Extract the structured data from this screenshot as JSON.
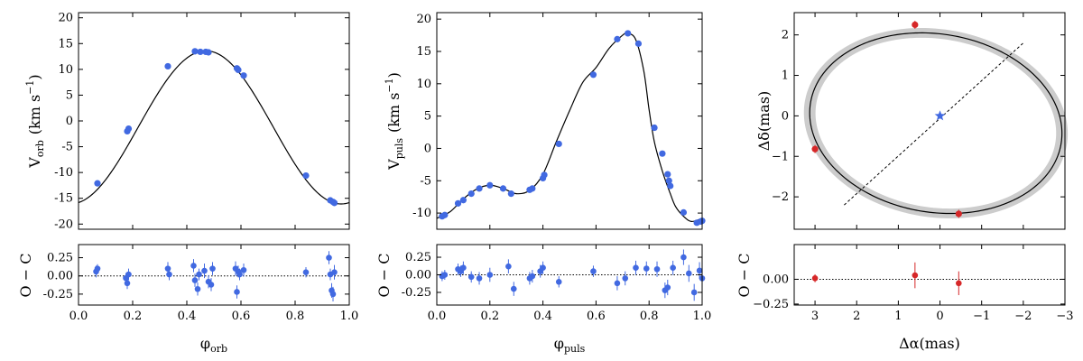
{
  "colors": {
    "rv": "#4169e1",
    "astro": "#d62728",
    "model": "#000000",
    "band": "#cccccc"
  },
  "chart_data": [
    {
      "id": "orb",
      "type": "line",
      "title": "",
      "xlim": [
        0.0,
        1.0
      ],
      "ylim": [
        -21,
        21
      ],
      "xticks": [
        "0.0",
        "0.2",
        "0.4",
        "0.6",
        "0.8",
        "1.0"
      ],
      "yticks": [
        "-20",
        "-15",
        "-10",
        "-5",
        "0",
        "5",
        "10",
        "15",
        "20"
      ],
      "ylabel": "V",
      "ylabel_sub": "orb",
      "ylabel_unit": "(km s",
      "ylabel_exp": "−1",
      "xlabel": "φ",
      "xlabel_sub": "orb",
      "model": {
        "kind": "sine",
        "amp": 14.85,
        "offset": -1.25,
        "peak": 0.47
      },
      "points": {
        "x": [
          0.07,
          0.18,
          0.185,
          0.33,
          0.43,
          0.45,
          0.47,
          0.48,
          0.585,
          0.59,
          0.61,
          0.84,
          0.93,
          0.94,
          0.945
        ],
        "y": [
          -12.1,
          -2.0,
          -1.5,
          10.6,
          13.5,
          13.4,
          13.4,
          13.3,
          10.2,
          9.9,
          8.8,
          -10.6,
          -15.4,
          -15.7,
          -15.9
        ]
      },
      "residuals": {
        "ylim": [
          -0.4,
          0.43
        ],
        "yticks": [
          "-0.25",
          "0.00",
          "0.25"
        ],
        "ylabel": "O − C",
        "x": [
          0.065,
          0.07,
          0.175,
          0.18,
          0.185,
          0.33,
          0.335,
          0.425,
          0.43,
          0.44,
          0.445,
          0.465,
          0.48,
          0.49,
          0.495,
          0.58,
          0.585,
          0.59,
          0.595,
          0.61,
          0.84,
          0.925,
          0.93,
          0.935,
          0.94,
          0.945
        ],
        "y": [
          0.06,
          0.1,
          -0.03,
          -0.1,
          0.02,
          0.1,
          0.02,
          0.14,
          -0.06,
          -0.18,
          0.02,
          0.07,
          -0.08,
          -0.12,
          0.1,
          0.1,
          -0.22,
          0.06,
          0.02,
          0.08,
          0.05,
          0.25,
          0.02,
          -0.2,
          -0.25,
          0.05
        ],
        "err": [
          0.08,
          0.06,
          0.07,
          0.08,
          0.08,
          0.09,
          0.08,
          0.09,
          0.09,
          0.09,
          0.08,
          0.1,
          0.09,
          0.09,
          0.09,
          0.1,
          0.09,
          0.08,
          0.08,
          0.09,
          0.07,
          0.09,
          0.08,
          0.1,
          0.1,
          0.1
        ]
      }
    },
    {
      "id": "puls",
      "type": "line",
      "title": "",
      "xlim": [
        0.0,
        1.0
      ],
      "ylim": [
        -12.5,
        21
      ],
      "xticks": [
        "0.0",
        "0.2",
        "0.4",
        "0.6",
        "0.8",
        "1.0"
      ],
      "yticks": [
        "-10",
        "-5",
        "0",
        "5",
        "10",
        "15",
        "20"
      ],
      "ylabel": "V",
      "ylabel_sub": "puls",
      "ylabel_unit": "(km s",
      "ylabel_exp": "−1",
      "xlabel": "φ",
      "xlabel_sub": "puls",
      "model": {
        "kind": "curve",
        "x": [
          0.0,
          0.05,
          0.1,
          0.15,
          0.2,
          0.25,
          0.3,
          0.35,
          0.4,
          0.45,
          0.5,
          0.55,
          0.6,
          0.65,
          0.7,
          0.72,
          0.75,
          0.78,
          0.8,
          0.82,
          0.85,
          0.88,
          0.9,
          0.93,
          0.96,
          1.0
        ],
        "y": [
          -10.8,
          -9.8,
          -7.8,
          -6.3,
          -5.7,
          -6.2,
          -7.0,
          -6.5,
          -4.0,
          1.0,
          5.8,
          10.2,
          12.5,
          15.5,
          17.5,
          17.8,
          16.8,
          12.0,
          6.0,
          1.0,
          -3.5,
          -7.0,
          -9.0,
          -10.5,
          -11.3,
          -10.8
        ]
      },
      "points": {
        "x": [
          0.02,
          0.03,
          0.08,
          0.1,
          0.13,
          0.16,
          0.2,
          0.25,
          0.28,
          0.35,
          0.36,
          0.4,
          0.405,
          0.46,
          0.59,
          0.68,
          0.72,
          0.76,
          0.82,
          0.85,
          0.87,
          0.875,
          0.88,
          0.93,
          0.98,
          0.995,
          1.0
        ],
        "y": [
          -10.5,
          -10.3,
          -8.5,
          -8.0,
          -7.0,
          -6.2,
          -5.7,
          -6.2,
          -7.0,
          -6.4,
          -6.2,
          -4.6,
          -4.1,
          0.7,
          11.4,
          16.9,
          17.8,
          16.2,
          3.2,
          -0.8,
          -4.0,
          -5.0,
          -5.8,
          -9.9,
          -11.5,
          -11.3,
          -11.2
        ]
      },
      "residuals": {
        "ylim": [
          -0.43,
          0.43
        ],
        "yticks": [
          "-0.25",
          "0.00",
          "0.25"
        ],
        "ylabel": "O − C",
        "x": [
          0.02,
          0.03,
          0.08,
          0.09,
          0.1,
          0.13,
          0.16,
          0.2,
          0.27,
          0.29,
          0.35,
          0.36,
          0.39,
          0.4,
          0.46,
          0.59,
          0.68,
          0.71,
          0.75,
          0.79,
          0.83,
          0.86,
          0.87,
          0.89,
          0.93,
          0.95,
          0.97,
          0.99,
          1.0
        ],
        "y": [
          -0.02,
          0.0,
          0.08,
          0.05,
          0.1,
          -0.03,
          -0.05,
          0.0,
          0.12,
          -0.2,
          -0.05,
          -0.02,
          0.05,
          0.1,
          -0.1,
          0.05,
          -0.12,
          -0.05,
          0.1,
          0.09,
          0.08,
          -0.22,
          -0.18,
          0.1,
          0.25,
          0.02,
          -0.25,
          0.06,
          -0.05
        ],
        "err": [
          0.07,
          0.07,
          0.08,
          0.08,
          0.09,
          0.08,
          0.09,
          0.1,
          0.1,
          0.1,
          0.09,
          0.09,
          0.09,
          0.09,
          0.08,
          0.08,
          0.1,
          0.1,
          0.1,
          0.1,
          0.11,
          0.11,
          0.11,
          0.1,
          0.11,
          0.12,
          0.12,
          0.12,
          0.12
        ]
      }
    },
    {
      "id": "astro",
      "type": "scatter",
      "title": "",
      "xlim": [
        3.5,
        -3.0
      ],
      "ylim": [
        -2.8,
        2.55
      ],
      "xticks": [
        "3",
        "2",
        "1",
        "0",
        "−1",
        "−2",
        "−3"
      ],
      "xtick_values": [
        3,
        2,
        1,
        0,
        -1,
        -2,
        -3
      ],
      "yticks": [
        "−2",
        "−1",
        "0",
        "1",
        "2"
      ],
      "ytick_values": [
        -2,
        -1,
        0,
        1,
        2
      ],
      "ylabel": "Δδ(mas)",
      "xlabel": "Δα(mas)",
      "orbit": {
        "cx": 0.1,
        "cy": -0.18,
        "a": 3.05,
        "b": 2.2,
        "angle_deg": 10
      },
      "node_line": {
        "x1": 2.3,
        "y1": -2.2,
        "x2": -2.0,
        "y2": 1.8
      },
      "center": {
        "x": 0.0,
        "y": 0.0
      },
      "points": {
        "x": [
          0.6,
          3.0,
          -0.45
        ],
        "y": [
          2.25,
          -0.82,
          -2.42
        ],
        "err": [
          0.1,
          0.1,
          0.1
        ]
      },
      "residuals": {
        "xlim": [
          3.5,
          -3.0
        ],
        "ylim": [
          -0.26,
          0.35
        ],
        "yticks": [
          "−0.25",
          "0.00"
        ],
        "ytick_values": [
          -0.25,
          0.0
        ],
        "ylabel": "O − C",
        "x": [
          3.0,
          0.6,
          -0.45
        ],
        "y": [
          0.01,
          0.04,
          -0.04
        ],
        "err": [
          0.04,
          0.13,
          0.12
        ]
      }
    }
  ]
}
